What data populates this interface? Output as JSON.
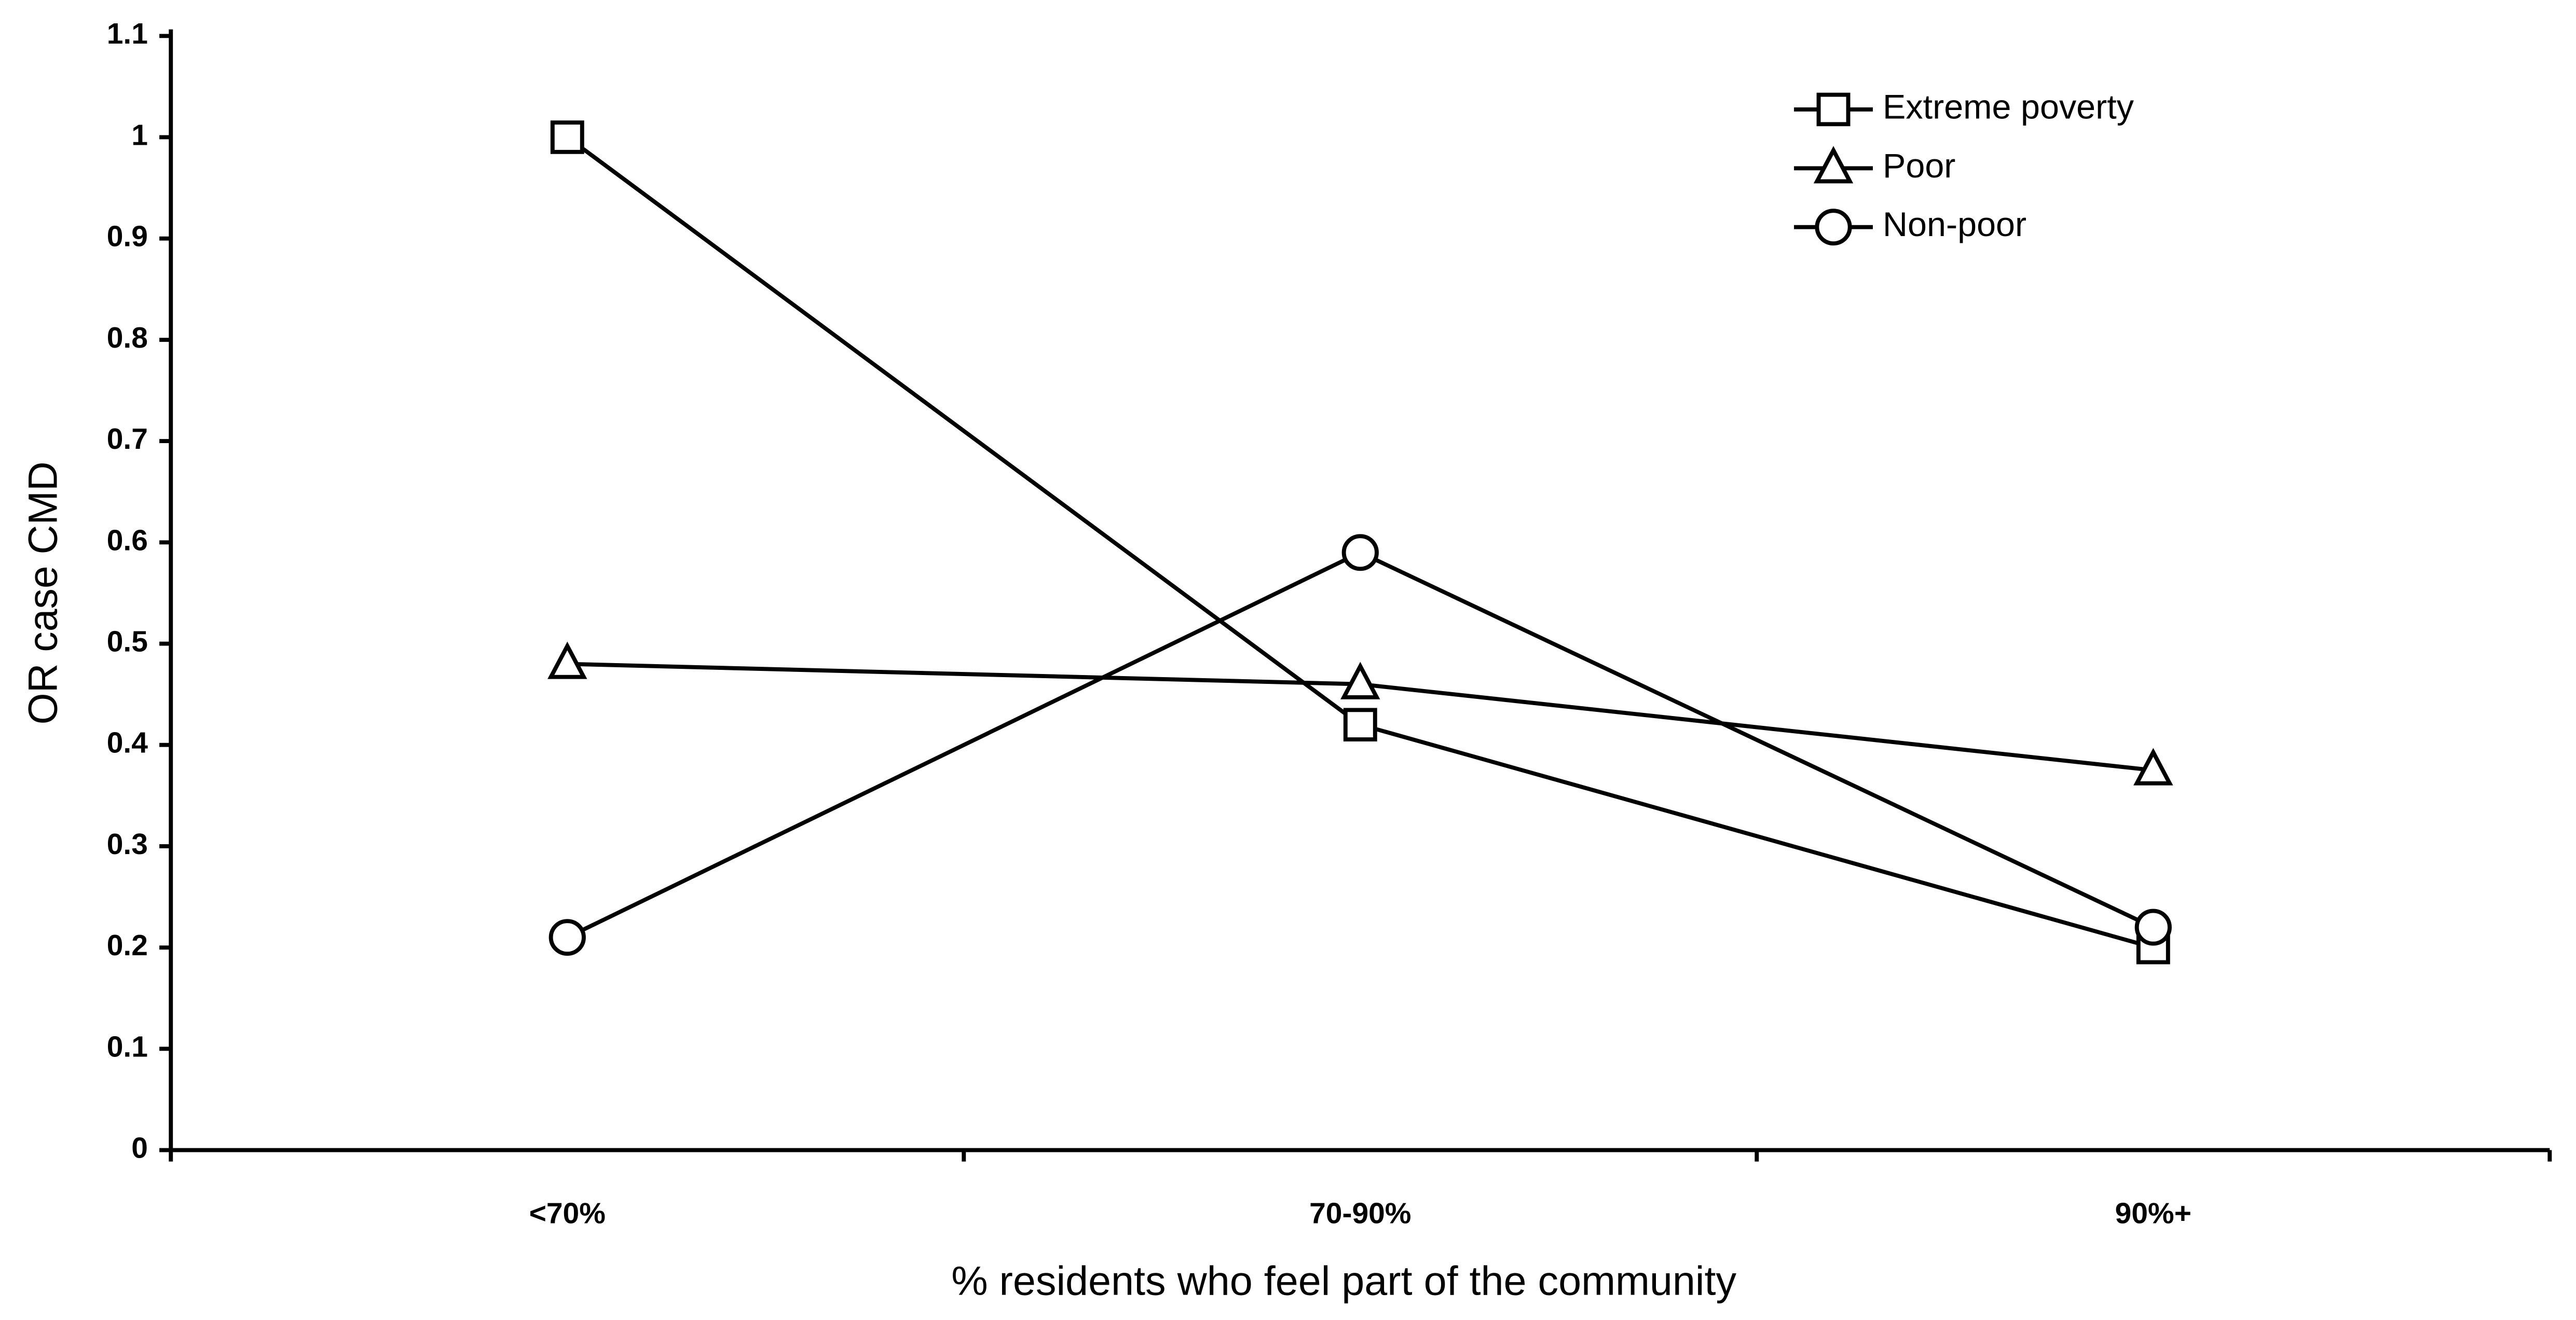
{
  "chart_data": {
    "type": "line",
    "xlabel": "% residents who feel part of the community",
    "ylabel": "OR case CMD",
    "categories": [
      "<70%",
      "70-90%",
      "90%+"
    ],
    "series": [
      {
        "name": "Extreme poverty",
        "color": "#000000",
        "marker": "square",
        "values": [
          1.0,
          0.42,
          0.2
        ]
      },
      {
        "name": "Poor",
        "color": "#000000",
        "marker": "triangle",
        "values": [
          0.48,
          0.46,
          0.375
        ]
      },
      {
        "name": "Non-poor",
        "color": "#000000",
        "marker": "circle",
        "values": [
          0.21,
          0.59,
          0.22
        ]
      }
    ],
    "ylim": [
      0,
      1.1
    ],
    "yticks": [
      0,
      0.1,
      0.2,
      0.3,
      0.4,
      0.5,
      0.6,
      0.7,
      0.8,
      0.9,
      1,
      1.1
    ],
    "grid": false,
    "legend": "upper right"
  }
}
